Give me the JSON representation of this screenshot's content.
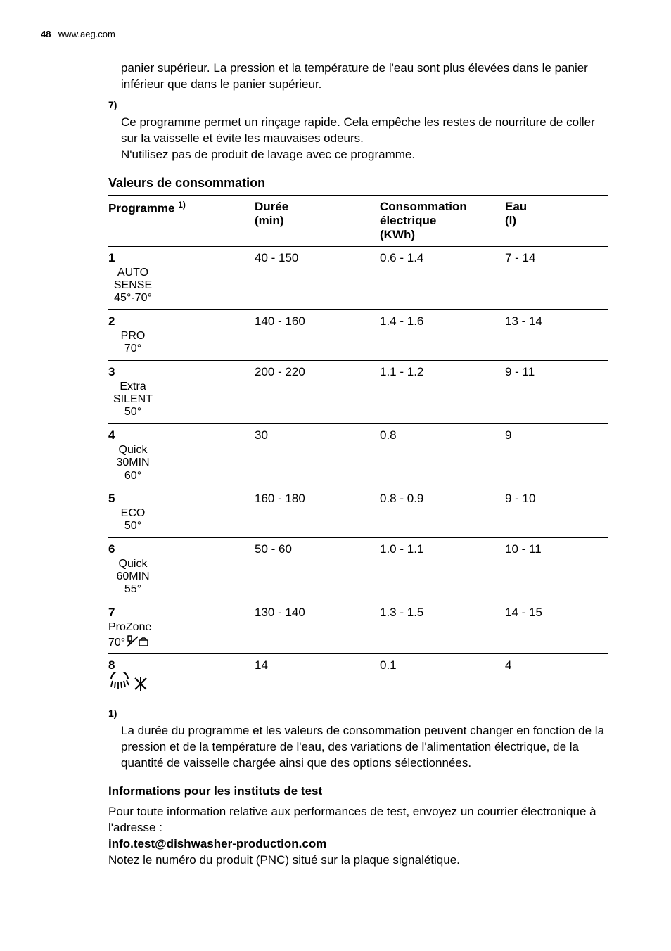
{
  "header": {
    "page_number": "48",
    "site": "www.aeg.com"
  },
  "intro": {
    "carry_over": "panier supérieur. La pression et la température de l'eau sont plus élevées dans le panier inférieur que dans le panier supérieur.",
    "fn7_index": "7)",
    "fn7_line1": "Ce programme permet un rinçage rapide. Cela empêche les restes de nourriture de coller sur la vaisselle et évite les mauvaises odeurs.",
    "fn7_line2": "N'utilisez pas de produit de lavage avec ce programme."
  },
  "table": {
    "title": "Valeurs de consommation",
    "headers": {
      "programme": "Programme",
      "programme_sup": "1)",
      "duree_l1": "Durée",
      "duree_l2": "(min)",
      "kwh_l1": "Consommation",
      "kwh_l2": "électrique",
      "kwh_l3": "(KWh)",
      "eau_l1": "Eau",
      "eau_l2": "(l)"
    },
    "rows": [
      {
        "num": "1",
        "l1": "AUTO",
        "l2": "SENSE",
        "l3": "45°-70°",
        "dur": "40 - 150",
        "kwh": "0.6 - 1.4",
        "eau": "7 - 14"
      },
      {
        "num": "2",
        "l1": "PRO",
        "l2": "70°",
        "l3": "",
        "dur": "140 - 160",
        "kwh": "1.4 - 1.6",
        "eau": "13 - 14"
      },
      {
        "num": "3",
        "pre": "Extra",
        "l1": "SILENT",
        "l2": "50°",
        "l3": "",
        "dur": "200 - 220",
        "kwh": "1.1 - 1.2",
        "eau": "9 - 11"
      },
      {
        "num": "4",
        "pre": "Quick",
        "l1": "30MIN",
        "l2": "60°",
        "l3": "",
        "dur": "30",
        "kwh": "0.8",
        "eau": "9"
      },
      {
        "num": "5",
        "l1": "ECO",
        "l2": "50°",
        "l3": "",
        "dur": "160 - 180",
        "kwh": "0.8 - 0.9",
        "eau": "9 - 10"
      },
      {
        "num": "6",
        "pre": "Quick",
        "l1": "60MIN",
        "l2": "55°",
        "l3": "",
        "dur": "50 - 60",
        "kwh": "1.0 - 1.1",
        "eau": "10 - 11"
      },
      {
        "num": "7",
        "l1": "ProZone",
        "l2": "",
        "l3": "",
        "dur": "130 - 140",
        "kwh": "1.3 - 1.5",
        "eau": "14 - 15",
        "icon": "prozone"
      },
      {
        "num": "8",
        "l1": "",
        "l2": "",
        "l3": "",
        "dur": "14",
        "kwh": "0.1",
        "eau": "4",
        "icon": "rinse"
      }
    ]
  },
  "footnote": {
    "index": "1)",
    "text": "La durée du programme et les valeurs de consommation peuvent changer en fonction de la pression et de la température de l'eau, des variations de l'alimentation électrique, de la quantité de vaisselle chargée ainsi que des options sélectionnées."
  },
  "test_info": {
    "title": "Informations pour les instituts de test",
    "line1": "Pour toute information relative aux performances de test, envoyez un courrier électronique à l'adresse :",
    "email": "info.test@dishwasher-production.com",
    "line2": "Notez le numéro du produit (PNC) situé sur la plaque signalétique."
  }
}
